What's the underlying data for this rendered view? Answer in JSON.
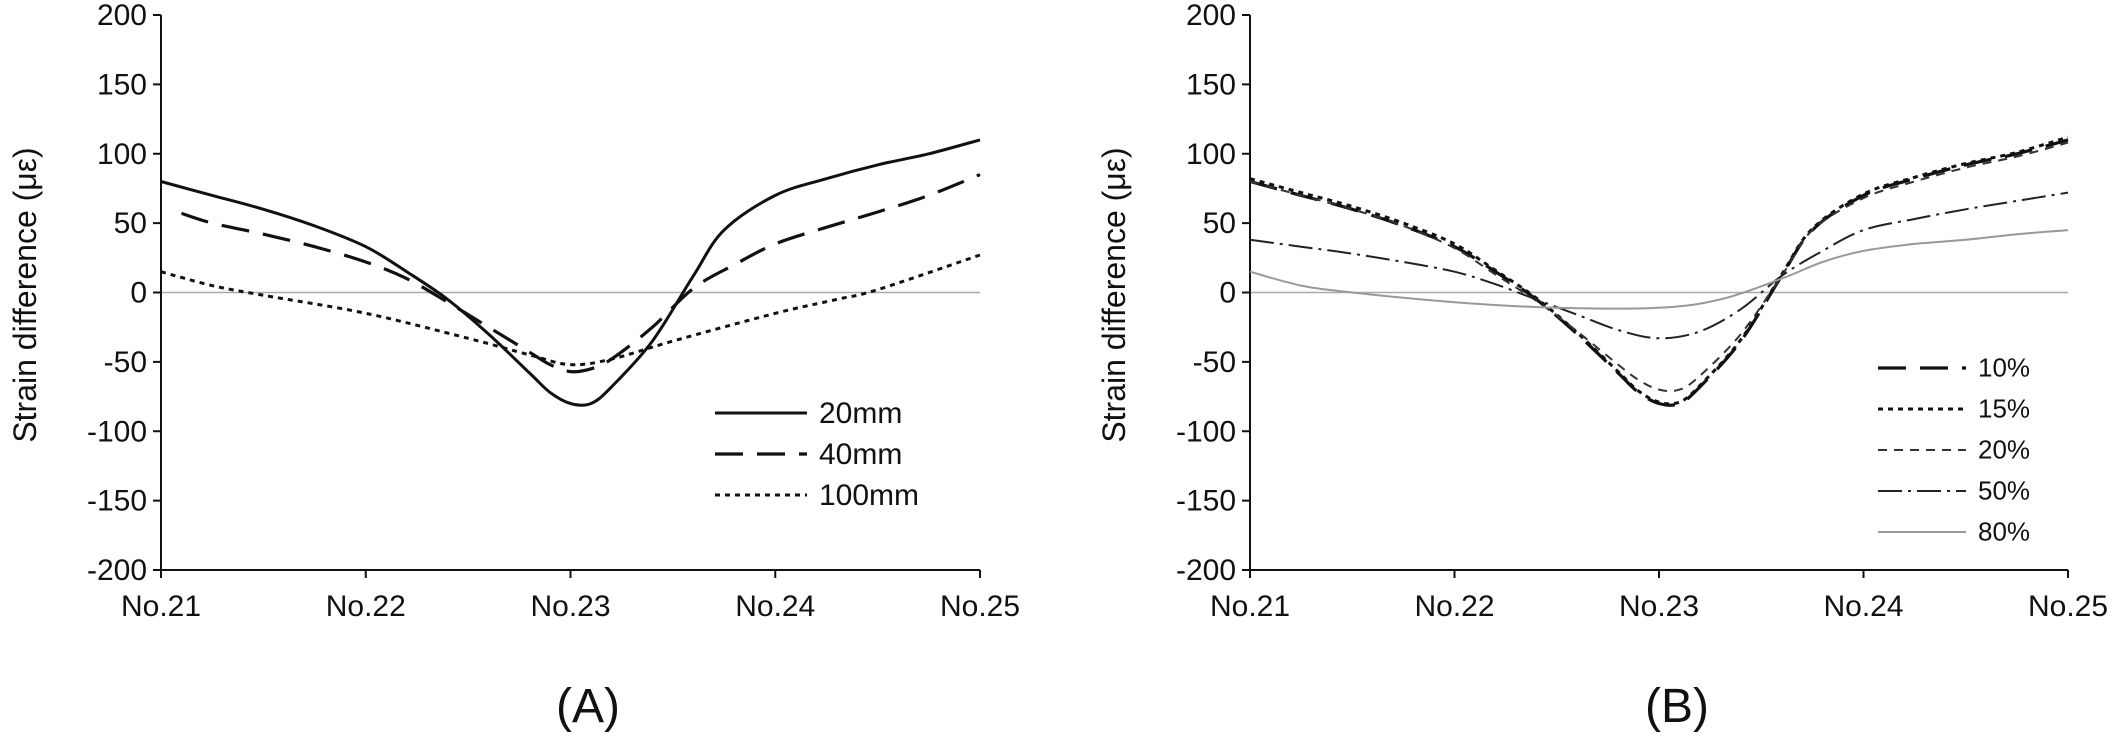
{
  "chart_data": [
    {
      "type": "line",
      "panel_label": "(A)",
      "ylabel": "Strain difference (με)",
      "xlabel": "",
      "categories": [
        "No.21",
        "No.22",
        "No.23",
        "No.24",
        "No.25"
      ],
      "yticks": [
        -200,
        -150,
        -100,
        -50,
        0,
        50,
        100,
        150,
        200
      ],
      "ylim": [
        -200,
        200
      ],
      "xlim": [
        0,
        4
      ],
      "grid": false,
      "zero_line": true,
      "legend_position": "bottom-right",
      "series": [
        {
          "name": "20mm",
          "style": "solid",
          "x": [
            0,
            0.25,
            0.5,
            0.75,
            1.0,
            1.2,
            1.4,
            1.6,
            1.8,
            1.9,
            2.0,
            2.1,
            2.2,
            2.4,
            2.6,
            2.75,
            3.0,
            3.25,
            3.5,
            3.75,
            4.0
          ],
          "y": [
            80,
            70,
            60,
            48,
            33,
            15,
            -5,
            -30,
            -58,
            -72,
            -80,
            -80,
            -68,
            -35,
            12,
            45,
            70,
            82,
            92,
            100,
            110
          ]
        },
        {
          "name": "40mm",
          "style": "long-dash",
          "x": [
            0.1,
            0.25,
            0.5,
            0.75,
            1.0,
            1.2,
            1.4,
            1.6,
            1.8,
            1.9,
            2.0,
            2.1,
            2.2,
            2.4,
            2.6,
            2.8,
            3.0,
            3.25,
            3.5,
            3.75,
            4.0
          ],
          "y": [
            57,
            50,
            42,
            33,
            22,
            10,
            -7,
            -25,
            -43,
            -52,
            -57,
            -55,
            -48,
            -25,
            3,
            20,
            35,
            47,
            58,
            70,
            85
          ]
        },
        {
          "name": "100mm",
          "style": "dotted",
          "x": [
            0,
            0.25,
            0.5,
            1.0,
            1.5,
            1.8,
            2.0,
            2.2,
            2.5,
            3.0,
            3.3,
            3.5,
            4.0
          ],
          "y": [
            15,
            5,
            -2,
            -15,
            -33,
            -45,
            -52,
            -48,
            -35,
            -15,
            -5,
            2,
            27
          ]
        }
      ]
    },
    {
      "type": "line",
      "panel_label": "(B)",
      "ylabel": "Strain difference (με)",
      "xlabel": "",
      "categories": [
        "No.21",
        "No.22",
        "No.23",
        "No.24",
        "No.25"
      ],
      "yticks": [
        -200,
        -150,
        -100,
        -50,
        0,
        50,
        100,
        150,
        200
      ],
      "ylim": [
        -200,
        200
      ],
      "xlim": [
        0,
        4
      ],
      "grid": false,
      "zero_line": true,
      "legend_position": "bottom-right",
      "series": [
        {
          "name": "10%",
          "style": "long-dash",
          "x": [
            0,
            0.25,
            0.5,
            0.75,
            1.0,
            1.2,
            1.4,
            1.6,
            1.8,
            1.9,
            2.0,
            2.1,
            2.2,
            2.4,
            2.6,
            2.75,
            3.0,
            3.25,
            3.5,
            3.75,
            4.0
          ],
          "y": [
            80,
            70,
            60,
            48,
            33,
            15,
            -5,
            -30,
            -58,
            -72,
            -80,
            -80,
            -68,
            -35,
            12,
            45,
            70,
            82,
            92,
            100,
            110
          ]
        },
        {
          "name": "15%",
          "style": "dotted",
          "x": [
            0,
            0.25,
            0.5,
            0.75,
            1.0,
            1.2,
            1.4,
            1.6,
            1.8,
            1.9,
            2.0,
            2.1,
            2.2,
            2.4,
            2.6,
            2.75,
            3.0,
            3.25,
            3.5,
            3.75,
            4.0
          ],
          "y": [
            82,
            72,
            62,
            50,
            35,
            16,
            -4,
            -29,
            -57,
            -71,
            -79,
            -79,
            -67,
            -34,
            13,
            46,
            71,
            83,
            93,
            101,
            112
          ]
        },
        {
          "name": "20%",
          "style": "short-dash",
          "x": [
            0,
            0.25,
            0.5,
            0.75,
            1.0,
            1.2,
            1.4,
            1.6,
            1.8,
            1.9,
            2.0,
            2.1,
            2.2,
            2.4,
            2.6,
            2.75,
            3.0,
            3.25,
            3.5,
            3.75,
            4.0
          ],
          "y": [
            80,
            70,
            60,
            48,
            32,
            13,
            -6,
            -28,
            -52,
            -63,
            -70,
            -70,
            -60,
            -30,
            12,
            45,
            68,
            80,
            90,
            98,
            108
          ]
        },
        {
          "name": "50%",
          "style": "dash-dot",
          "x": [
            0,
            0.25,
            0.5,
            0.75,
            1.0,
            1.2,
            1.4,
            1.6,
            1.8,
            2.0,
            2.2,
            2.4,
            2.6,
            2.8,
            3.0,
            3.25,
            3.5,
            3.75,
            4.0
          ],
          "y": [
            38,
            33,
            28,
            22,
            15,
            6,
            -5,
            -16,
            -27,
            -33,
            -28,
            -12,
            12,
            30,
            45,
            53,
            60,
            66,
            72
          ]
        },
        {
          "name": "80%",
          "style": "solid-grey",
          "x": [
            0,
            0.25,
            0.5,
            1.0,
            1.5,
            2.0,
            2.3,
            2.6,
            2.8,
            3.0,
            3.25,
            3.5,
            3.75,
            4.0
          ],
          "y": [
            15,
            5,
            0,
            -7,
            -11,
            -11,
            -5,
            10,
            22,
            30,
            35,
            38,
            42,
            45
          ]
        }
      ]
    }
  ]
}
